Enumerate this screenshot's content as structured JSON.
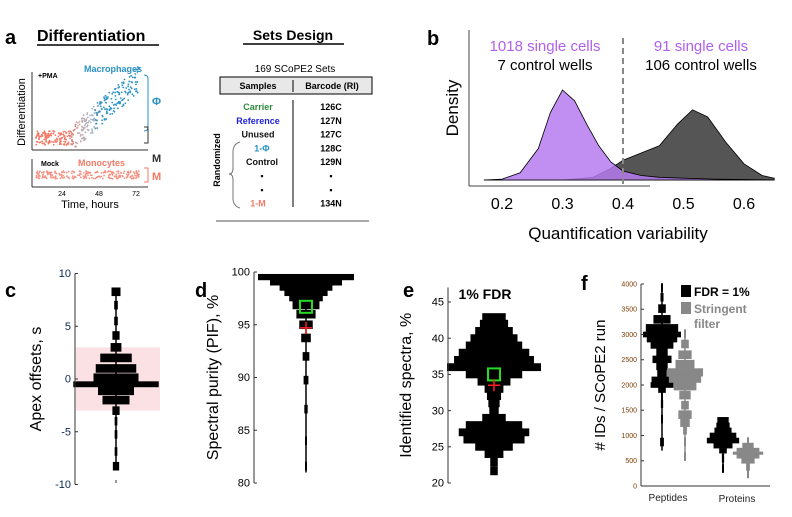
{
  "panel_a": {
    "label": "a",
    "title": "Differentiation",
    "plot": {
      "y_label": "Differentiation",
      "x_label": "Time, hours",
      "x_ticks": [
        "24",
        "48",
        "72"
      ],
      "top_condition": "+PMA",
      "bottom_condition": "Mock",
      "macrophages_label": "Macrophages",
      "monocytes_label": "Monocytes",
      "phi_symbol": "Φ",
      "m_symbol_top": "M",
      "m_symbol_bottom": "M",
      "colors": {
        "macrophage": "#2a93c4",
        "monocyte": "#f47a66"
      }
    },
    "sets_design": {
      "title": "Sets Design",
      "subtitle": "169 SCoPE2 Sets",
      "headers": [
        "Samples",
        "Barcode (RI)"
      ],
      "side_label": "Randomized",
      "rows": [
        {
          "sample": "Carrier",
          "barcode": "126C",
          "color": "#2e8b3a"
        },
        {
          "sample": "Reference",
          "barcode": "127N",
          "color": "#1f1fe0"
        },
        {
          "sample": "Unused",
          "barcode": "127C",
          "color": "#111111"
        },
        {
          "sample": "1-Φ",
          "barcode": "128C",
          "color": "#2a93c4"
        },
        {
          "sample": "Control",
          "barcode": "129N",
          "color": "#111111"
        },
        {
          "sample": "▪",
          "barcode": "▪",
          "color": "#111111"
        },
        {
          "sample": "▪",
          "barcode": "▪",
          "color": "#111111"
        },
        {
          "sample": "1-M",
          "barcode": "134N",
          "color": "#f47a66"
        }
      ]
    }
  },
  "chart_data": [
    {
      "panel": "b",
      "type": "area",
      "xlabel": "Quantification variability",
      "ylabel": "Density",
      "xlim": [
        0.17,
        0.65
      ],
      "x_ticks": [
        "0.2",
        "0.3",
        "0.4",
        "0.5",
        "0.6"
      ],
      "threshold": 0.4,
      "annotations": {
        "left_cells": "1018 single cells",
        "left_controls": "7 control wells",
        "right_cells": "91 single cells",
        "right_controls": "106 control wells"
      },
      "series": [
        {
          "color": "#b57bee",
          "x": [
            0.17,
            0.2,
            0.23,
            0.26,
            0.28,
            0.3,
            0.32,
            0.34,
            0.36,
            0.38,
            0.4,
            0.43,
            0.46,
            0.5,
            0.55,
            0.6,
            0.65
          ],
          "y": [
            0,
            0.01,
            0.08,
            0.35,
            0.75,
            1.0,
            0.88,
            0.62,
            0.38,
            0.2,
            0.1,
            0.05,
            0.03,
            0.02,
            0.01,
            0.005,
            0
          ]
        },
        {
          "color": "#555555",
          "x": [
            0.17,
            0.3,
            0.35,
            0.38,
            0.4,
            0.43,
            0.46,
            0.49,
            0.515,
            0.54,
            0.57,
            0.6,
            0.63,
            0.65
          ],
          "y": [
            0,
            0,
            0.03,
            0.13,
            0.22,
            0.3,
            0.38,
            0.62,
            0.78,
            0.7,
            0.42,
            0.18,
            0.05,
            0.02
          ]
        }
      ]
    },
    {
      "panel": "c",
      "type": "violin",
      "ylabel": "Apex offsets, s",
      "ylim": [
        -10,
        10
      ],
      "y_ticks": [
        "10",
        "5",
        "0",
        "-5",
        "-10"
      ],
      "shaded_band": [
        -3,
        3
      ],
      "levels": [
        [
          8.5,
          0.1
        ],
        [
          7,
          0.04
        ],
        [
          5.5,
          0.04
        ],
        [
          4,
          0.08
        ],
        [
          3,
          0.12
        ],
        [
          2,
          0.35
        ],
        [
          1,
          0.45
        ],
        [
          0,
          0.5
        ],
        [
          -0.5,
          0.95
        ],
        [
          -1,
          0.4
        ],
        [
          -2,
          0.3
        ],
        [
          -3,
          0.08
        ],
        [
          -4,
          0.03
        ],
        [
          -5,
          0.03
        ],
        [
          -7,
          0.03
        ],
        [
          -8.5,
          0.07
        ]
      ]
    },
    {
      "panel": "d",
      "type": "violin",
      "ylabel": "Spectral purity (PIF), %",
      "ylim": [
        80,
        100
      ],
      "y_ticks": [
        "100",
        "95",
        "90",
        "85",
        "80"
      ],
      "median": 96.7,
      "mean": 94.7,
      "levels": [
        [
          99.5,
          1.0
        ],
        [
          99,
          0.75
        ],
        [
          98.5,
          0.55
        ],
        [
          98,
          0.45
        ],
        [
          97.5,
          0.35
        ],
        [
          97,
          0.28
        ],
        [
          96,
          0.2
        ],
        [
          95,
          0.14
        ],
        [
          94,
          0.1
        ],
        [
          92,
          0.07
        ],
        [
          90,
          0.05
        ],
        [
          87,
          0.035
        ],
        [
          84,
          0.02
        ],
        [
          81,
          0.012
        ]
      ]
    },
    {
      "panel": "e",
      "type": "violin",
      "title": "1% FDR",
      "ylabel": "Identified spectra, %",
      "ylim": [
        20,
        47
      ],
      "y_ticks": [
        "45",
        "40",
        "35",
        "30",
        "25",
        "20"
      ],
      "median": 35,
      "mean": 33.5,
      "levels": [
        [
          43,
          0.25
        ],
        [
          42,
          0.3
        ],
        [
          41,
          0.4
        ],
        [
          40,
          0.5
        ],
        [
          39,
          0.6
        ],
        [
          38,
          0.75
        ],
        [
          37,
          0.85
        ],
        [
          36,
          1.0
        ],
        [
          35,
          0.6
        ],
        [
          34,
          0.35
        ],
        [
          33,
          0.2
        ],
        [
          32,
          0.15
        ],
        [
          31,
          0.12
        ],
        [
          30,
          0.1
        ],
        [
          29,
          0.25
        ],
        [
          28,
          0.6
        ],
        [
          27,
          0.75
        ],
        [
          26,
          0.65
        ],
        [
          25,
          0.4
        ],
        [
          24,
          0.2
        ],
        [
          23,
          0.08
        ],
        [
          21.5,
          0.08
        ]
      ]
    },
    {
      "panel": "f",
      "type": "violin",
      "ylabel": "# IDs / SCoPE2 run",
      "ylim": [
        0,
        4000
      ],
      "y_ticks": [
        "4000",
        "3500",
        "3000",
        "2500",
        "2000",
        "1500",
        "1000",
        "500",
        "0"
      ],
      "categories": [
        "Peptides",
        "Proteins"
      ],
      "legend": [
        {
          "name": "FDR = 1%",
          "color": "#000000"
        },
        {
          "name": "Stringent filter",
          "color": "#888888"
        }
      ],
      "series": [
        {
          "category": "Peptides",
          "name": "FDR = 1%",
          "levels": [
            [
              3950,
              0.04
            ],
            [
              3750,
              0.08
            ],
            [
              3500,
              0.2
            ],
            [
              3300,
              0.45
            ],
            [
              3100,
              0.85
            ],
            [
              3000,
              1.0
            ],
            [
              2900,
              0.8
            ],
            [
              2800,
              0.6
            ],
            [
              2650,
              0.3
            ],
            [
              2500,
              0.5
            ],
            [
              2380,
              0.3
            ],
            [
              2220,
              0.25
            ],
            [
              2100,
              0.55
            ],
            [
              2000,
              0.6
            ],
            [
              1900,
              0.2
            ],
            [
              1800,
              0.05
            ],
            [
              1600,
              0.06
            ],
            [
              1500,
              0.04
            ],
            [
              700,
              0.1
            ]
          ]
        },
        {
          "category": "Peptides",
          "name": "Stringent filter",
          "levels": [
            [
              3050,
              0.03
            ],
            [
              2800,
              0.2
            ],
            [
              2600,
              0.35
            ],
            [
              2400,
              0.5
            ],
            [
              2250,
              0.95
            ],
            [
              2100,
              0.85
            ],
            [
              2000,
              0.6
            ],
            [
              1800,
              0.3
            ],
            [
              1600,
              0.2
            ],
            [
              1400,
              0.35
            ],
            [
              1250,
              0.25
            ],
            [
              1100,
              0.1
            ],
            [
              950,
              0.04
            ],
            [
              500,
              0.04
            ]
          ]
        },
        {
          "category": "Proteins",
          "name": "FDR = 1%",
          "levels": [
            [
              1300,
              0.3
            ],
            [
              1200,
              0.35
            ],
            [
              1100,
              0.45
            ],
            [
              1000,
              0.7
            ],
            [
              900,
              0.85
            ],
            [
              800,
              0.5
            ],
            [
              700,
              0.2
            ],
            [
              600,
              0.06
            ],
            [
              300,
              0.05
            ]
          ]
        },
        {
          "category": "Proteins",
          "name": "Stringent filter",
          "levels": [
            [
              900,
              0.05
            ],
            [
              800,
              0.3
            ],
            [
              700,
              0.6
            ],
            [
              650,
              0.8
            ],
            [
              600,
              0.6
            ],
            [
              500,
              0.35
            ],
            [
              400,
              0.1
            ],
            [
              220,
              0.04
            ]
          ]
        }
      ]
    }
  ]
}
